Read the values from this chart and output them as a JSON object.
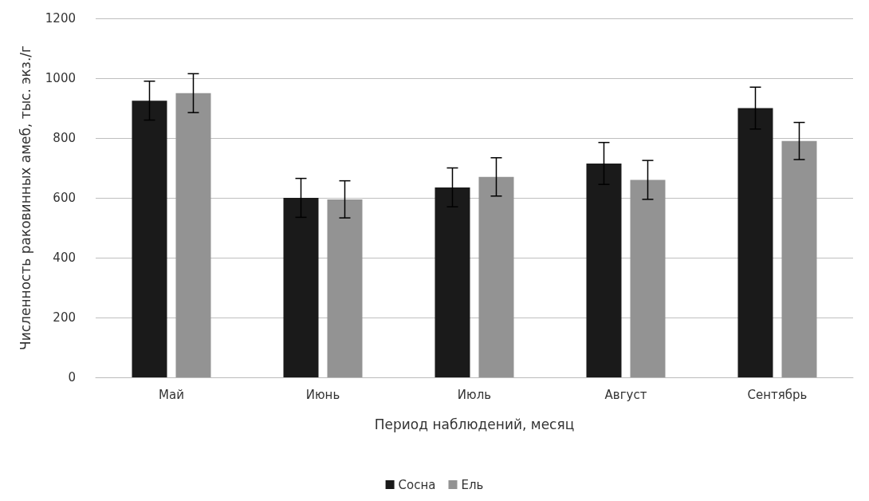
{
  "chart_data": {
    "type": "bar",
    "xlabel": "Период наблюдений, месяц",
    "ylabel": "Численность раковинных амеб, тыс. экз./г",
    "categories": [
      "Май",
      "Июнь",
      "Июль",
      "Август",
      "Сентябрь"
    ],
    "series": [
      {
        "name": "Сосна",
        "color": "#1a1a1a",
        "values": [
          925,
          600,
          635,
          715,
          900
        ],
        "errors": [
          65,
          65,
          65,
          70,
          70
        ]
      },
      {
        "name": "Ель",
        "color": "#939393",
        "values": [
          950,
          595,
          670,
          660,
          790
        ],
        "errors": [
          65,
          62,
          64,
          65,
          62
        ]
      }
    ],
    "ylim": [
      0,
      1200
    ],
    "yticks": [
      0,
      200,
      400,
      600,
      800,
      1000,
      1200
    ],
    "grid": "y",
    "legend": "bottom"
  }
}
